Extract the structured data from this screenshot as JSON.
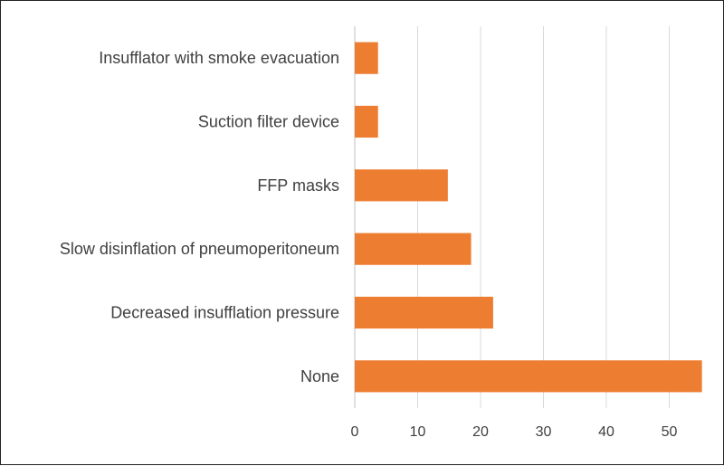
{
  "chart_data": {
    "type": "bar",
    "orientation": "horizontal",
    "categories": [
      "Insufflator with smoke evacuation",
      "Suction filter device",
      "FFP masks",
      "Slow disinflation of pneumoperitoneum",
      "Decreased insufflation pressure",
      "None"
    ],
    "values": [
      3.7,
      3.7,
      14.8,
      18.5,
      22.0,
      55.2
    ],
    "xlim": [
      0,
      55
    ],
    "xticks": [
      0,
      10,
      20,
      30,
      40,
      50
    ],
    "grid": "vertical",
    "bar_color": "#ED7D31",
    "grid_color": "#D9D9D9",
    "title": "",
    "xlabel": "",
    "ylabel": "",
    "legend": "none"
  }
}
